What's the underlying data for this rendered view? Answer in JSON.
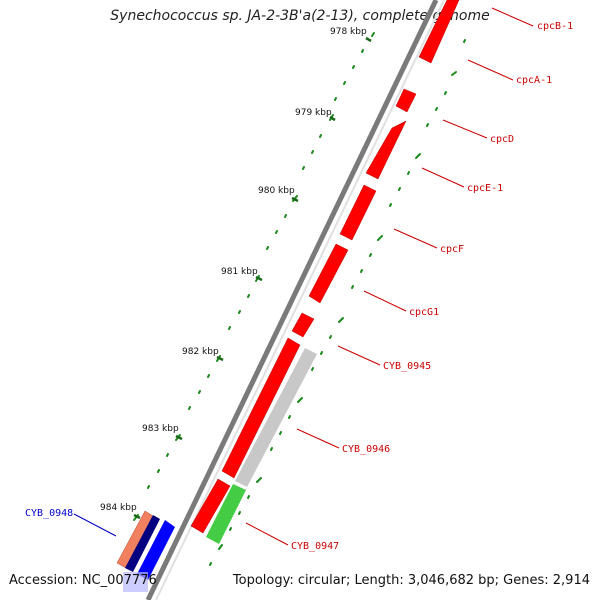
{
  "header": {
    "title": "Synechococcus sp. JA-2-3B'a(2-13), complete genome"
  },
  "footer": {
    "accession": "Accession: NC_007776",
    "summary": "Topology: circular; Length: 3,046,682 bp; Genes: 2,914"
  },
  "ticks": [
    {
      "label": "978 kbp"
    },
    {
      "label": "979 kbp"
    },
    {
      "label": "980 kbp"
    },
    {
      "label": "981 kbp"
    },
    {
      "label": "982 kbp"
    },
    {
      "label": "983 kbp"
    },
    {
      "label": "984 kbp"
    }
  ],
  "genes": [
    {
      "label": "cpcB-1",
      "color": "#cc0000"
    },
    {
      "label": "cpcA-1",
      "color": "#cc0000"
    },
    {
      "label": "cpcD",
      "color": "#cc0000"
    },
    {
      "label": "cpcE-1",
      "color": "#cc0000"
    },
    {
      "label": "cpcF",
      "color": "#cc0000"
    },
    {
      "label": "cpcG1",
      "color": "#cc0000"
    },
    {
      "label": "CYB_0945",
      "color": "#cc0000"
    },
    {
      "label": "CYB_0946",
      "color": "#cc0000"
    },
    {
      "label": "CYB_0947",
      "color": "#cc0000"
    },
    {
      "label": "CYB_0948",
      "color": "#0000cc"
    }
  ],
  "colors": {
    "forward_gene": "#ff0000",
    "reverse_gene": "#0000ff",
    "gray_feature": "#c8c8c8",
    "green_feature": "#44cc44",
    "salmon_feature": "#f08060",
    "navy_feature": "#000080",
    "backbone": "#808080",
    "gc_dots": "#1a8a1a"
  }
}
